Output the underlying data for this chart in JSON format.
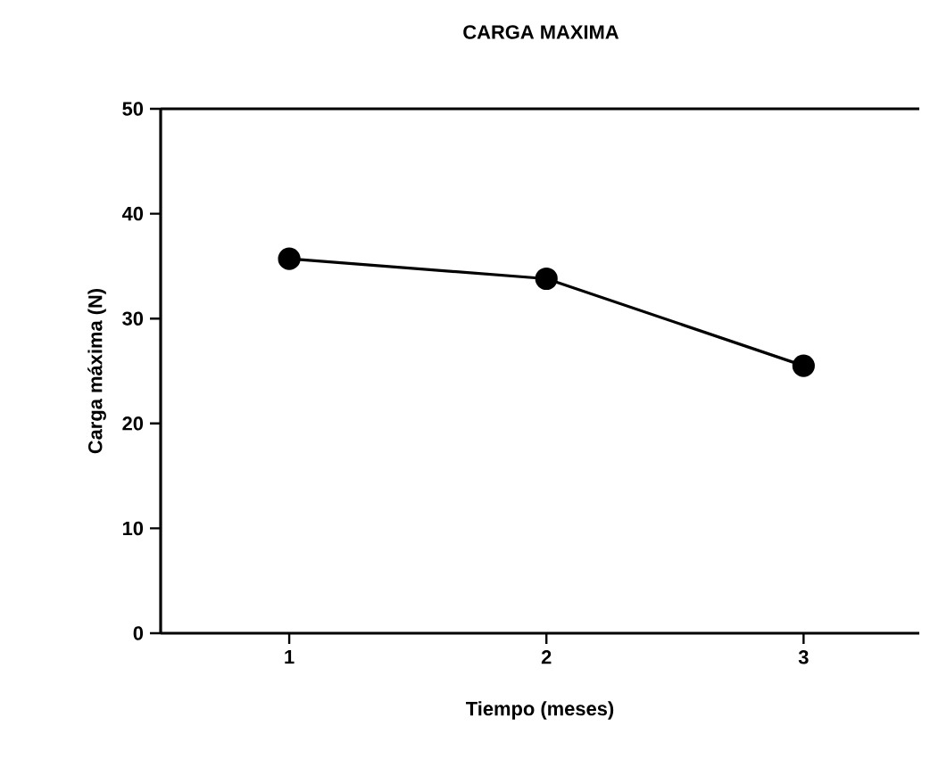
{
  "chart_data": {
    "type": "line",
    "title": "CARGA MAXIMA",
    "xlabel": "Tiempo (meses)",
    "ylabel": "Carga máxima (N)",
    "x": [
      1,
      2,
      3
    ],
    "series": [
      {
        "color": "#000000",
        "values": [
          35.7,
          33.8,
          25.5
        ]
      }
    ],
    "xlim": [
      0.5,
      3.45
    ],
    "ylim": [
      0,
      50
    ],
    "xticks": [
      1,
      2,
      3
    ],
    "yticks": [
      0,
      10,
      20,
      30,
      40,
      50
    ],
    "marker": "circle",
    "line_style": "solid"
  }
}
